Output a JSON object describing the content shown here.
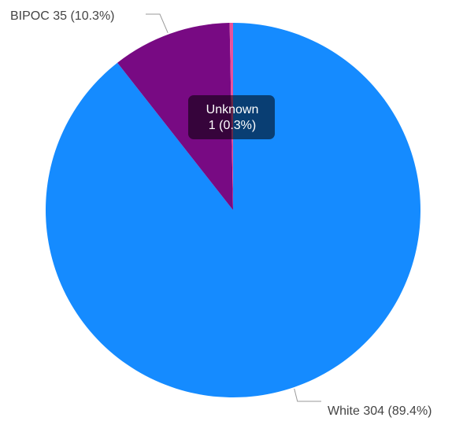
{
  "chart_data": {
    "type": "pie",
    "title": "",
    "categories": [
      "White",
      "BIPOC",
      "Unknown"
    ],
    "values": [
      304,
      35,
      1
    ],
    "percentages": [
      89.4,
      10.3,
      0.3
    ],
    "colors": [
      "#158bff",
      "#780a83",
      "#e9519b"
    ],
    "labels": [
      "White 304 (89.4%)",
      "BIPOC 35 (10.3%)",
      ""
    ],
    "tooltip": {
      "category": "Unknown",
      "value_line": "1 (0.3%)"
    }
  }
}
